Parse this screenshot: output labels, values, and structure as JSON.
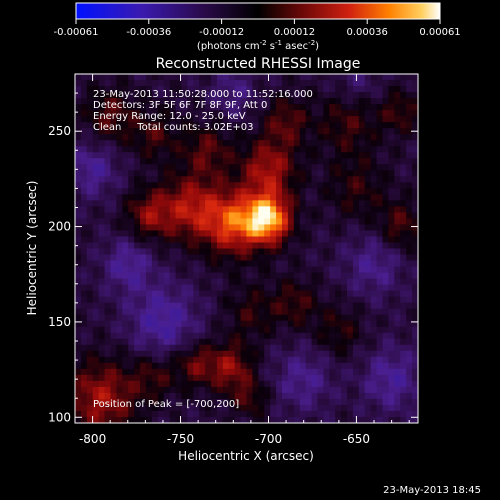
{
  "colorbar": {
    "ticks": [
      "-0.00061",
      "-0.00036",
      "-0.00012",
      "0.00012",
      "0.00036",
      "0.00061"
    ],
    "units_text": "(photons cm",
    "units_sup1": "-2",
    "units_mid": " s",
    "units_sup2": "-1",
    "units_end": " asec",
    "units_sup3": "-2",
    "units_close": ")"
  },
  "footer_timestamp": "23-May-2013 18:45",
  "chart_data": {
    "type": "heatmap",
    "title": "Reconstructed RHESSI Image",
    "xlabel": "Heliocentric X (arcsec)",
    "ylabel": "Heliocentric Y (arcsec)",
    "xlim": [
      -810,
      -615
    ],
    "ylim": [
      97,
      280
    ],
    "xticks": [
      -800,
      -750,
      -700,
      -650
    ],
    "yticks": [
      100,
      150,
      200,
      250
    ],
    "zrange": [
      -0.00061,
      0.00061
    ],
    "colormap": [
      "#0010ff",
      "#2a1aa0",
      "#4a1e8e",
      "#250a3a",
      "#000000",
      "#3a0008",
      "#8a0a0a",
      "#d02010",
      "#ff7000",
      "#ffc040",
      "#fffff0"
    ],
    "annotations": [
      "23-May-2013 11:50:28.000 to 11:52:16.000",
      "Detectors: 3F 5F 6F 7F 8F 9F, Att 0",
      "Energy Range: 12.0 - 25.0 keV",
      "Clean     Total counts: 3.02E+03"
    ],
    "peak_label": "Position of Peak = [-700,200]",
    "peak": {
      "x": -700,
      "y": 200
    },
    "sources": [
      {
        "x": -700,
        "y": 204,
        "sigma": 9,
        "amp": 1.0
      },
      {
        "x": -720,
        "y": 202,
        "sigma": 12,
        "amp": 0.75
      },
      {
        "x": -745,
        "y": 210,
        "sigma": 12,
        "amp": 0.55
      },
      {
        "x": -768,
        "y": 206,
        "sigma": 9,
        "amp": 0.45
      },
      {
        "x": -700,
        "y": 230,
        "sigma": 11,
        "amp": 0.55
      },
      {
        "x": -735,
        "y": 240,
        "sigma": 10,
        "amp": 0.35
      },
      {
        "x": -690,
        "y": 255,
        "sigma": 9,
        "amp": 0.35
      },
      {
        "x": -765,
        "y": 248,
        "sigma": 9,
        "amp": 0.3
      },
      {
        "x": -790,
        "y": 258,
        "sigma": 10,
        "amp": 0.35
      },
      {
        "x": -655,
        "y": 255,
        "sigma": 12,
        "amp": 0.3
      },
      {
        "x": -625,
        "y": 260,
        "sigma": 8,
        "amp": 0.3
      },
      {
        "x": -795,
        "y": 110,
        "sigma": 14,
        "amp": 0.55
      },
      {
        "x": -742,
        "y": 128,
        "sigma": 8,
        "amp": 0.4
      },
      {
        "x": -722,
        "y": 126,
        "sigma": 9,
        "amp": 0.5
      },
      {
        "x": -710,
        "y": 110,
        "sigma": 7,
        "amp": 0.3
      },
      {
        "x": -765,
        "y": 122,
        "sigma": 9,
        "amp": 0.3
      },
      {
        "x": -650,
        "y": 220,
        "sigma": 12,
        "amp": 0.25
      },
      {
        "x": -625,
        "y": 200,
        "sigma": 9,
        "amp": 0.35
      },
      {
        "x": -660,
        "y": 145,
        "sigma": 10,
        "amp": 0.25
      },
      {
        "x": -685,
        "y": 160,
        "sigma": 9,
        "amp": 0.3
      },
      {
        "x": -710,
        "y": 155,
        "sigma": 10,
        "amp": 0.25
      },
      {
        "x": -780,
        "y": 180,
        "sigma": 10,
        "amp": -0.35
      },
      {
        "x": -760,
        "y": 150,
        "sigma": 14,
        "amp": -0.4
      },
      {
        "x": -640,
        "y": 180,
        "sigma": 12,
        "amp": -0.3
      },
      {
        "x": -680,
        "y": 120,
        "sigma": 12,
        "amp": -0.3
      },
      {
        "x": -630,
        "y": 120,
        "sigma": 12,
        "amp": -0.35
      },
      {
        "x": -800,
        "y": 230,
        "sigma": 10,
        "amp": -0.35
      },
      {
        "x": -720,
        "y": 270,
        "sigma": 9,
        "amp": -0.25
      },
      {
        "x": -650,
        "y": 275,
        "sigma": 9,
        "amp": -0.2
      }
    ]
  }
}
